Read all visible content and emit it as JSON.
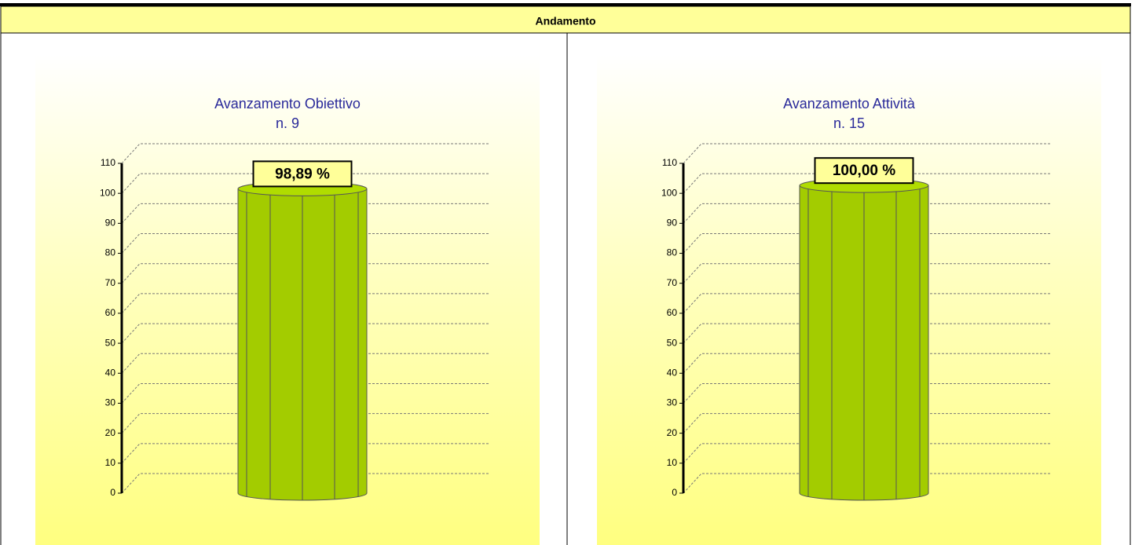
{
  "header": {
    "title": "Andamento"
  },
  "chart_data": [
    {
      "type": "bar",
      "title": "Avanzamento Obiettivo",
      "subtitle": "n. 9",
      "categories": [
        null
      ],
      "values": [
        98.89
      ],
      "value_labels": [
        "98,89 %"
      ],
      "color": "#a3cc00",
      "ylim": [
        0,
        110
      ],
      "yticks": [
        0,
        10,
        20,
        30,
        40,
        50,
        60,
        70,
        80,
        90,
        100,
        110
      ],
      "grid": true
    },
    {
      "type": "bar",
      "title": "Avanzamento Attività",
      "subtitle": "n. 15",
      "categories": [
        null
      ],
      "values": [
        100
      ],
      "value_labels": [
        "100,00 %"
      ],
      "color": "#a3cc00",
      "ylim": [
        0,
        110
      ],
      "yticks": [
        0,
        10,
        20,
        30,
        40,
        50,
        60,
        70,
        80,
        90,
        100,
        110
      ],
      "grid": true
    }
  ]
}
